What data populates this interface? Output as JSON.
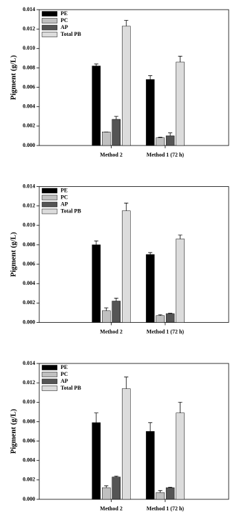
{
  "chart_data": [
    {
      "type": "bar",
      "y_label": "Pigment (g/L)",
      "categories": [
        "Method 2",
        "Method 1 (72 h)"
      ],
      "ylim": [
        0,
        0.014
      ],
      "yticks": [
        {
          "value": 0,
          "label": "0.000"
        },
        {
          "value": 0.002,
          "label": "0.002"
        },
        {
          "value": 0.004,
          "label": "0.004"
        },
        {
          "value": 0.006,
          "label": "0.006"
        },
        {
          "value": 0.008,
          "label": "0.008"
        },
        {
          "value": 0.01,
          "label": "0.010"
        },
        {
          "value": 0.012,
          "label": "0.012"
        },
        {
          "value": 0.014,
          "label": "0.014"
        }
      ],
      "legend": "upper left",
      "series": [
        {
          "name": "PE",
          "color": "#000000",
          "values": [
            0.0082,
            0.0068
          ],
          "errors": [
            0.0002,
            0.0004
          ]
        },
        {
          "name": "PC",
          "color": "#c0c0c0",
          "values": [
            0.0014,
            0.0008
          ],
          "errors": [
            0.0,
            5e-05
          ]
        },
        {
          "name": "AP",
          "color": "#555555",
          "values": [
            0.0027,
            0.001
          ],
          "errors": [
            0.0003,
            0.0003
          ]
        },
        {
          "name": "Total PB",
          "color": "#dcdcdc",
          "values": [
            0.0123,
            0.0086
          ],
          "errors": [
            0.0006,
            0.0006
          ]
        }
      ]
    },
    {
      "type": "bar",
      "y_label": "Pigment (g/L)",
      "categories": [
        "Method 2",
        "Method 1 (72 h)"
      ],
      "ylim": [
        0,
        0.014
      ],
      "yticks": [
        {
          "value": 0,
          "label": "0.000"
        },
        {
          "value": 0.002,
          "label": "0.002"
        },
        {
          "value": 0.004,
          "label": "0.004"
        },
        {
          "value": 0.006,
          "label": "0.006"
        },
        {
          "value": 0.008,
          "label": "0.008"
        },
        {
          "value": 0.01,
          "label": "0.010"
        },
        {
          "value": 0.012,
          "label": "0.012"
        },
        {
          "value": 0.014,
          "label": "0.014"
        }
      ],
      "legend": "upper left",
      "series": [
        {
          "name": "PE",
          "color": "#000000",
          "values": [
            0.008,
            0.007
          ],
          "errors": [
            0.0004,
            0.0002
          ]
        },
        {
          "name": "PC",
          "color": "#c0c0c0",
          "values": [
            0.0012,
            0.0007
          ],
          "errors": [
            0.0003,
            0.0001
          ]
        },
        {
          "name": "AP",
          "color": "#555555",
          "values": [
            0.0022,
            0.0009
          ],
          "errors": [
            0.0003,
            5e-05
          ]
        },
        {
          "name": "Total PB",
          "color": "#dcdcdc",
          "values": [
            0.0115,
            0.0086
          ],
          "errors": [
            0.0008,
            0.0004
          ]
        }
      ]
    },
    {
      "type": "bar",
      "y_label": "Pigment (g/L)",
      "categories": [
        "Method 2",
        "Method 1 (72 h)"
      ],
      "ylim": [
        0,
        0.014
      ],
      "yticks": [
        {
          "value": 0,
          "label": "0.000"
        },
        {
          "value": 0.002,
          "label": "0.002"
        },
        {
          "value": 0.004,
          "label": "0.004"
        },
        {
          "value": 0.006,
          "label": "0.006"
        },
        {
          "value": 0.008,
          "label": "0.008"
        },
        {
          "value": 0.01,
          "label": "0.010"
        },
        {
          "value": 0.012,
          "label": "0.012"
        },
        {
          "value": 0.014,
          "label": "0.014"
        }
      ],
      "legend": "upper left",
      "series": [
        {
          "name": "PE",
          "color": "#000000",
          "values": [
            0.0079,
            0.007
          ],
          "errors": [
            0.001,
            0.0009
          ]
        },
        {
          "name": "PC",
          "color": "#c0c0c0",
          "values": [
            0.0012,
            0.0007
          ],
          "errors": [
            0.0002,
            0.0002
          ]
        },
        {
          "name": "AP",
          "color": "#555555",
          "values": [
            0.0023,
            0.0012
          ],
          "errors": [
            0.0001,
            5e-05
          ]
        },
        {
          "name": "Total PB",
          "color": "#dcdcdc",
          "values": [
            0.0114,
            0.0089
          ],
          "errors": [
            0.0012,
            0.0011
          ]
        }
      ]
    }
  ]
}
